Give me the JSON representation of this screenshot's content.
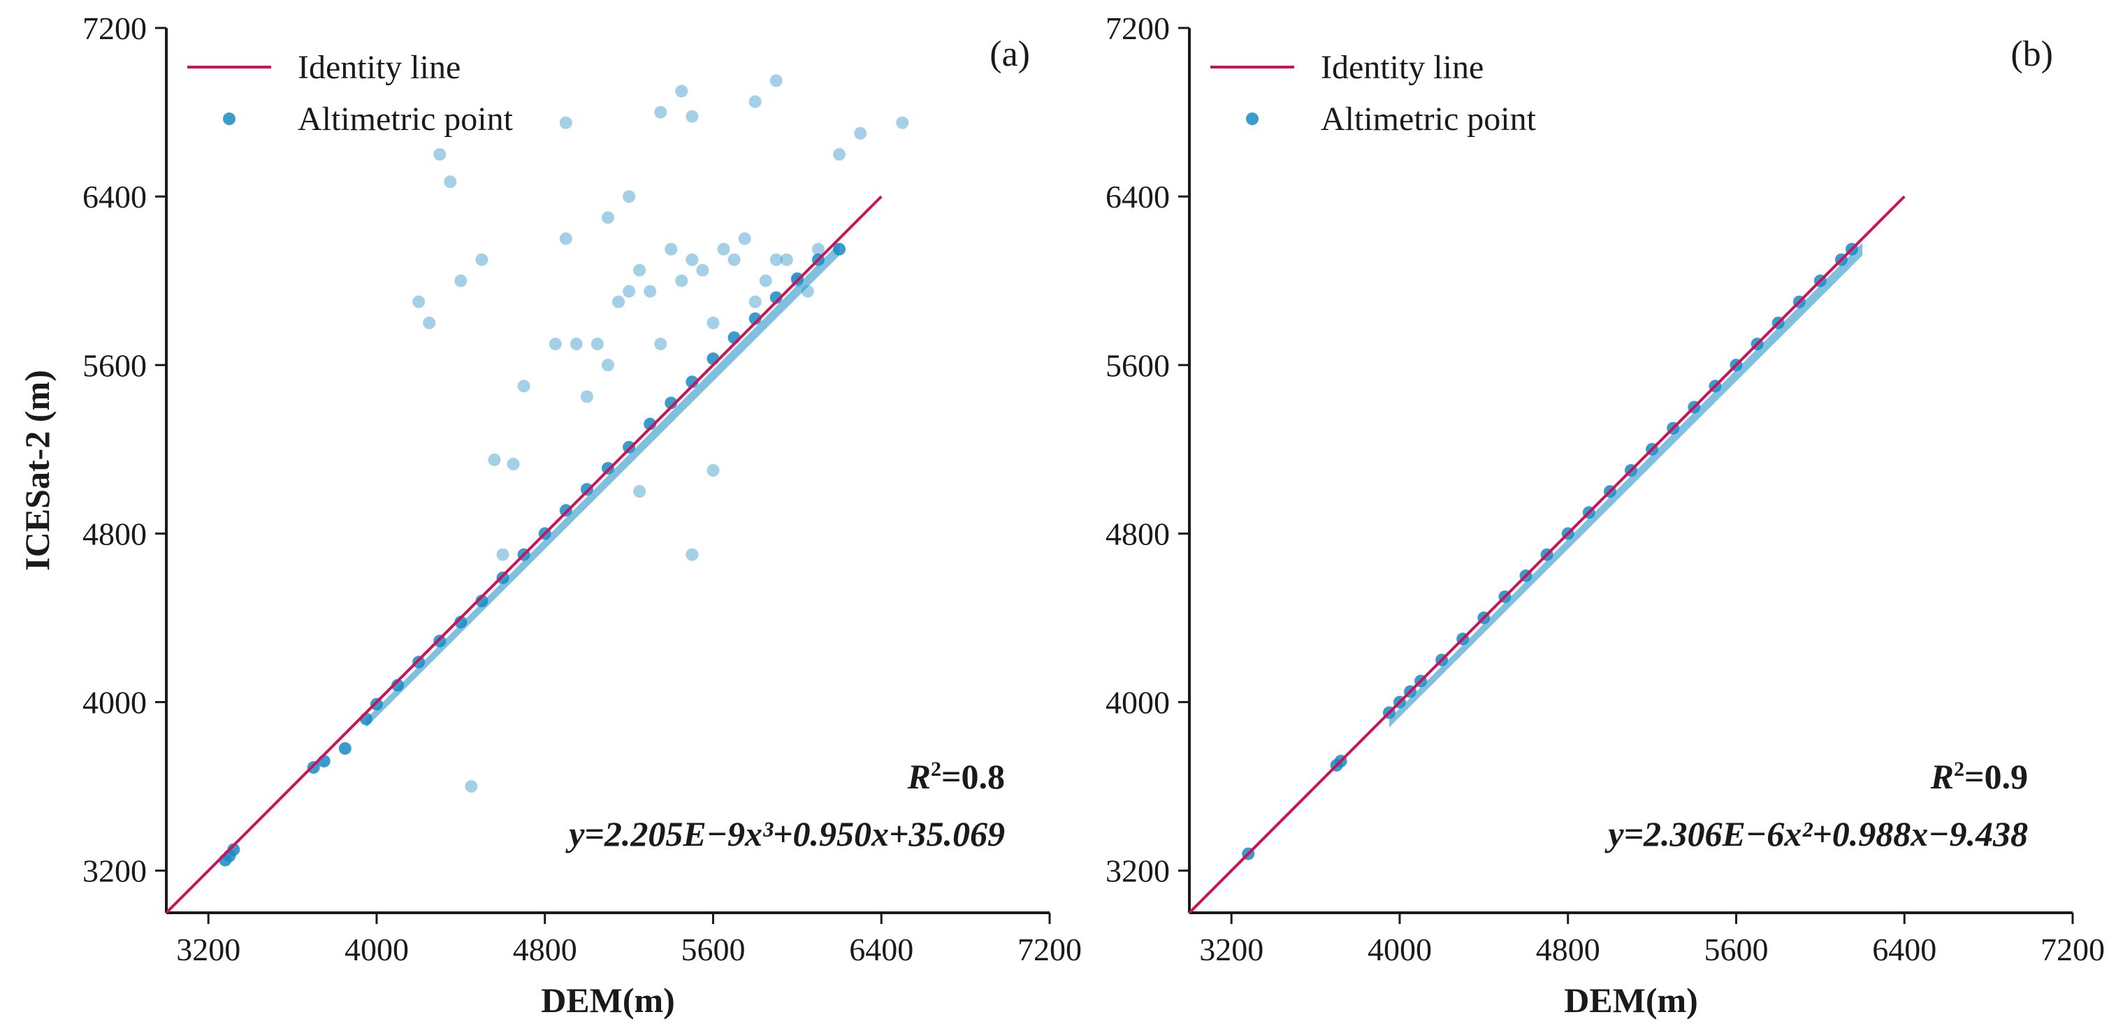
{
  "chart_data": [
    {
      "type": "scatter",
      "panel_label": "(a)",
      "xlabel": "DEM(m)",
      "ylabel": "ICESat-2 (m)",
      "xlim": [
        3000,
        7200
      ],
      "ylim": [
        3000,
        7200
      ],
      "xticks": [
        3200,
        4000,
        4800,
        5600,
        6400,
        7200
      ],
      "yticks": [
        3200,
        4000,
        4800,
        5600,
        6400,
        7200
      ],
      "legend": {
        "position": "top-left",
        "entries": [
          "Identity line",
          "Altimetric point"
        ]
      },
      "identity_line": {
        "x": [
          3000,
          6400
        ],
        "y": [
          3000,
          6400
        ],
        "color": "#c8145a"
      },
      "point_color": "#1a8ac4",
      "r2_prefix": "R",
      "r2_value": "=0.8",
      "equation": "y=2.205E−9x³+0.950x+35.069",
      "series": [
        {
          "name": "Altimetric point (along identity)",
          "x": [
            3280,
            3300,
            3320,
            3700,
            3750,
            3850,
            3950,
            4000,
            4100,
            4200,
            4300,
            4400,
            4500,
            4600,
            4700,
            4800,
            4900,
            5000,
            5100,
            5200,
            5300,
            5400,
            5500,
            5600,
            5700,
            5800,
            5900,
            6000,
            6100,
            6200
          ],
          "y": [
            3250,
            3270,
            3300,
            3690,
            3720,
            3780,
            3920,
            3990,
            4080,
            4190,
            4290,
            4380,
            4480,
            4590,
            4700,
            4800,
            4910,
            5010,
            5110,
            5210,
            5320,
            5420,
            5520,
            5630,
            5730,
            5820,
            5920,
            6010,
            6100,
            6150
          ]
        },
        {
          "name": "Altimetric point (scattered above)",
          "x": [
            4300,
            4350,
            4560,
            4650,
            4850,
            4900,
            4950,
            5000,
            5050,
            5100,
            5150,
            5200,
            5250,
            5300,
            5350,
            5400,
            5450,
            5500,
            5550,
            5600,
            5650,
            5700,
            5750,
            5800,
            5850,
            5900,
            5950,
            6000,
            6050,
            6100,
            6200,
            6300,
            6500,
            4200,
            4250,
            4400,
            4500,
            4700,
            5350,
            5500,
            5450,
            5800,
            5900,
            4900,
            5100,
            5200,
            5600,
            5250,
            5500,
            4450,
            4600
          ],
          "y": [
            6600,
            6470,
            5150,
            5130,
            5700,
            6750,
            5700,
            5450,
            5700,
            5600,
            5900,
            5950,
            6050,
            5950,
            5700,
            6150,
            6000,
            6100,
            6050,
            5800,
            6150,
            6100,
            6200,
            5900,
            6000,
            6100,
            6100,
            6000,
            5950,
            6150,
            6600,
            6700,
            6750,
            5900,
            5800,
            6000,
            6100,
            5500,
            6800,
            6780,
            6900,
            6850,
            6950,
            6200,
            6300,
            6400,
            5100,
            5000,
            4700,
            3600,
            4700
          ]
        }
      ]
    },
    {
      "type": "scatter",
      "panel_label": "(b)",
      "xlabel": "DEM(m)",
      "ylabel": "",
      "xlim": [
        3000,
        7200
      ],
      "ylim": [
        3000,
        7200
      ],
      "xticks": [
        3200,
        4000,
        4800,
        5600,
        6400,
        7200
      ],
      "yticks": [
        3200,
        4000,
        4800,
        5600,
        6400,
        7200
      ],
      "legend": {
        "position": "top-left",
        "entries": [
          "Identity line",
          "Altimetric point"
        ]
      },
      "identity_line": {
        "x": [
          3000,
          6400
        ],
        "y": [
          3000,
          6400
        ],
        "color": "#c8145a"
      },
      "point_color": "#1a8ac4",
      "r2_prefix": "R",
      "r2_value": "=0.9",
      "equation": "y=2.306E−6x²+0.988x−9.438",
      "series": [
        {
          "name": "Altimetric point",
          "x": [
            3280,
            3700,
            3720,
            3950,
            4000,
            4050,
            4100,
            4200,
            4300,
            4400,
            4500,
            4600,
            4700,
            4800,
            4900,
            5000,
            5100,
            5200,
            5300,
            5400,
            5500,
            5600,
            5700,
            5800,
            5900,
            6000,
            6100,
            6150
          ],
          "y": [
            3280,
            3700,
            3720,
            3950,
            4000,
            4050,
            4100,
            4200,
            4300,
            4400,
            4500,
            4600,
            4700,
            4800,
            4900,
            5000,
            5100,
            5200,
            5300,
            5400,
            5500,
            5600,
            5700,
            5800,
            5900,
            6000,
            6100,
            6150
          ]
        }
      ]
    }
  ]
}
